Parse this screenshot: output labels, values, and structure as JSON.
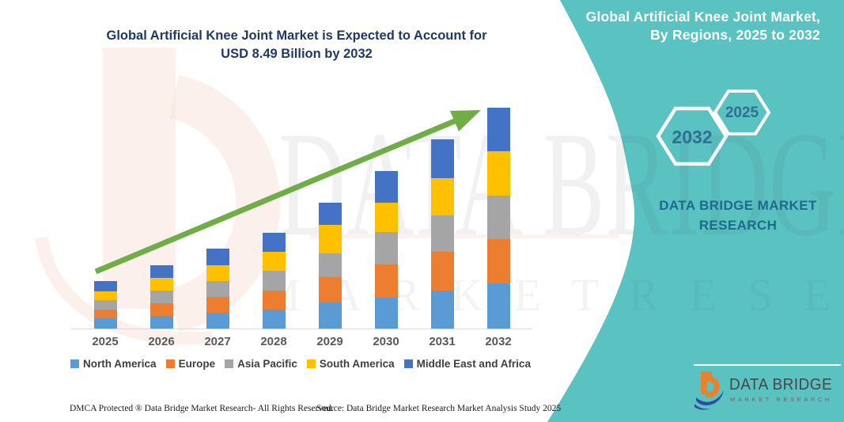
{
  "left_panel": {
    "title_line1": "Global Artificial Knee Joint Market is Expected to Account for",
    "title_line2": "USD 8.49 Billion by 2032"
  },
  "right_panel": {
    "heading_line1": "Global Artificial Knee Joint Market,",
    "heading_line2": "By Regions, 2025 to 2032",
    "hexagon_back_label": "2032",
    "hexagon_front_label": "2025",
    "brand_line1": "DATA BRIDGE MARKET",
    "brand_line2": "RESEARCH",
    "panel_color": "#5BC2C2",
    "hexagon_text_color": "#2F6F93",
    "brand_text_color": "#1C6B8A"
  },
  "chart_data": {
    "type": "bar",
    "stacked": true,
    "title": "Global Artificial Knee Joint Market is Expected to Account for USD 8.49 Billion by 2032",
    "unit": "USD Billion",
    "categories": [
      "2025",
      "2026",
      "2027",
      "2028",
      "2029",
      "2030",
      "2031",
      "2032"
    ],
    "series": [
      {
        "name": "North America",
        "color": "#5B9BD5",
        "values": [
          0.4,
          0.49,
          0.62,
          0.74,
          1.0,
          1.19,
          1.46,
          1.73
        ]
      },
      {
        "name": "Europe",
        "color": "#ED7D31",
        "values": [
          0.33,
          0.48,
          0.61,
          0.73,
          0.97,
          1.28,
          1.49,
          1.7
        ]
      },
      {
        "name": "Asia Pacific",
        "color": "#A5A5A5",
        "values": [
          0.37,
          0.49,
          0.61,
          0.74,
          0.92,
          1.24,
          1.4,
          1.67
        ]
      },
      {
        "name": "South America",
        "color": "#FFC000",
        "values": [
          0.33,
          0.48,
          0.61,
          0.73,
          1.1,
          1.13,
          1.43,
          1.73
        ]
      },
      {
        "name": "Middle East and Africa",
        "color": "#4472C4",
        "values": [
          0.4,
          0.49,
          0.62,
          0.74,
          0.85,
          1.22,
          1.49,
          1.66
        ]
      }
    ],
    "totals": [
      1.83,
      2.43,
      3.07,
      3.68,
      4.84,
      6.06,
      7.27,
      8.49
    ],
    "ylim": [
      0,
      8.49
    ],
    "grid": false,
    "legend_position": "bottom",
    "trend_arrow": true,
    "trend_arrow_color": "#70AD47",
    "axis_color": "#D9D9D9",
    "xlabel_color": "#595959"
  },
  "watermark": {
    "line1": "DATA BRIDGE",
    "line2": "M A R K E T  R E S E A R C H"
  },
  "footer": {
    "dmca": "DMCA Protected ® Data Bridge Market Research- All Rights Reserved.",
    "source": "Source: Data Bridge Market Research Market Analysis Study 2025"
  },
  "logo": {
    "name": "DATA BRIDGE",
    "subtitle": "MARKET RESEARCH"
  }
}
